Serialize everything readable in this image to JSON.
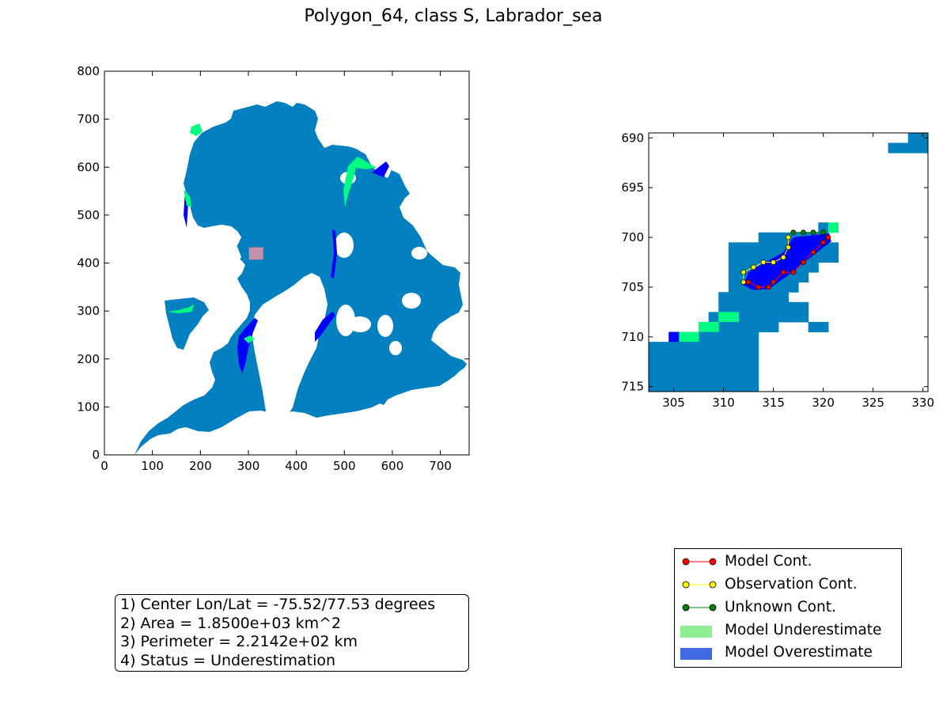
{
  "title": "Polygon_64, class S, Labrador_sea",
  "colors": {
    "ocean_ice": "#0380c0",
    "model_underestimate": "#90ee90",
    "model_overestimate": "#4169e1",
    "under_cells": "#00ff80",
    "over_cells": "#0000ff",
    "model_contour": "#ff0000",
    "observation_contour": "#ffff00",
    "unknown_contour": "#008000",
    "highlight_box": "#ff9aa2"
  },
  "chart_data": [
    {
      "type": "heatmap",
      "name": "overview-map",
      "xlim": [
        0,
        760
      ],
      "ylim": [
        0,
        800
      ],
      "xticks": [
        0,
        100,
        200,
        300,
        400,
        500,
        600,
        700
      ],
      "yticks": [
        0,
        100,
        200,
        300,
        400,
        500,
        600,
        700,
        800
      ],
      "highlight_box": {
        "x": [
          302,
          330
        ],
        "y": [
          408,
          432
        ]
      }
    },
    {
      "type": "heatmap",
      "name": "zoom-map",
      "xlim": [
        302.5,
        330.5
      ],
      "ylim": [
        715.5,
        689.5
      ],
      "xticks": [
        305,
        310,
        315,
        320,
        325,
        330
      ],
      "yticks": [
        690,
        695,
        700,
        705,
        710,
        715
      ],
      "contours": {
        "model": [
          [
            312.5,
            704.5
          ],
          [
            313.5,
            705
          ],
          [
            314.5,
            705
          ],
          [
            315,
            704.5
          ],
          [
            316,
            703.5
          ],
          [
            317,
            703.5
          ],
          [
            318,
            702.5
          ],
          [
            319,
            701.5
          ],
          [
            320,
            700.5
          ],
          [
            320.5,
            700
          ]
        ],
        "observation": [
          [
            312,
            704.5
          ],
          [
            312,
            703.5
          ],
          [
            313,
            703
          ],
          [
            314,
            702.5
          ],
          [
            315,
            702.5
          ],
          [
            316,
            702
          ],
          [
            316.5,
            701
          ],
          [
            316.5,
            700
          ]
        ],
        "unknown": [
          [
            317,
            699.5
          ],
          [
            318,
            699.5
          ],
          [
            319,
            699.5
          ],
          [
            320,
            699.5
          ]
        ]
      }
    }
  ],
  "info": [
    "1) Center Lon/Lat = -75.52/77.53 degrees",
    "2) Area = 1.8500e+03 km^2",
    "3) Perimeter = 2.2142e+02 km",
    "4) Status = Underestimation"
  ],
  "legend": [
    {
      "label": "Model Cont.",
      "kind": "line",
      "color": "#ff0000"
    },
    {
      "label": "Observation Cont.",
      "kind": "line",
      "color": "#ffff00"
    },
    {
      "label": "Unknown Cont.",
      "kind": "line",
      "color": "#008000"
    },
    {
      "label": "Model Underestimate",
      "kind": "patch",
      "color": "#90ee90"
    },
    {
      "label": "Model Overestimate",
      "kind": "patch",
      "color": "#4169e1"
    }
  ]
}
